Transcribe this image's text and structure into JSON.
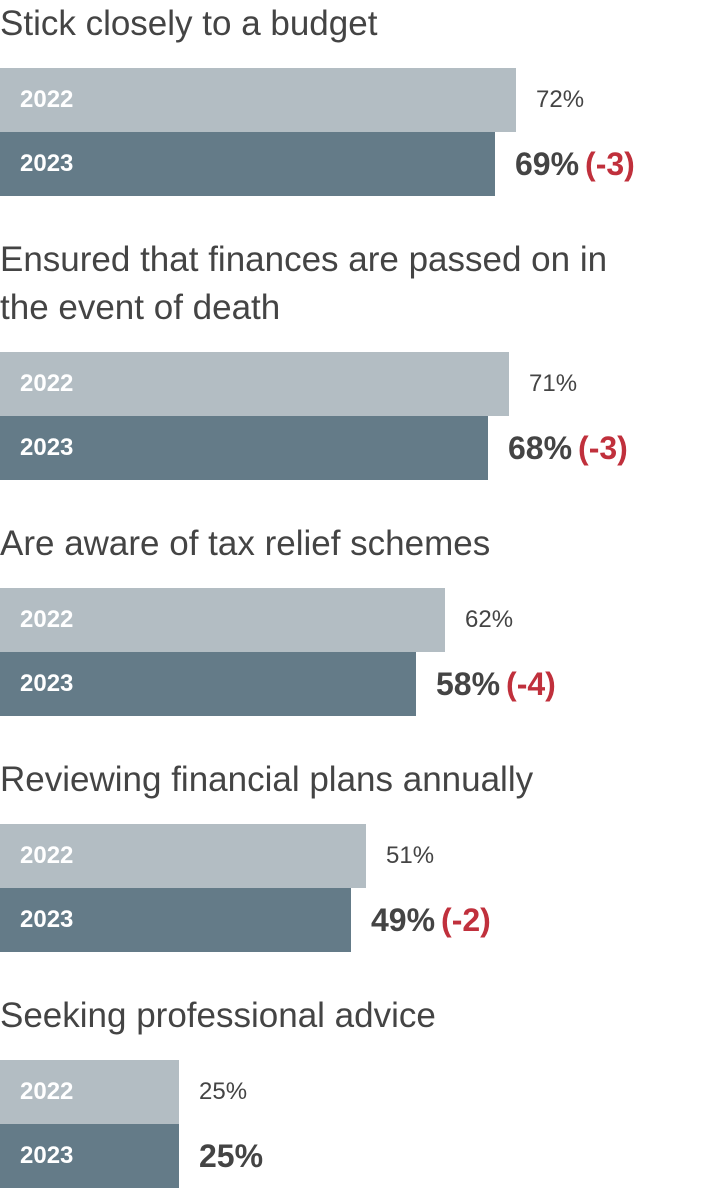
{
  "colors": {
    "bar_2022": "#b3bdc3",
    "bar_2023": "#647b88",
    "text": "#444444",
    "change": "#c0303c",
    "bar_label": "#ffffff"
  },
  "chart_data": {
    "type": "bar",
    "orientation": "horizontal",
    "unit": "%",
    "xlim": [
      0,
      100
    ],
    "series": [
      {
        "name": "2022",
        "color": "#b3bdc3"
      },
      {
        "name": "2023",
        "color": "#647b88"
      }
    ],
    "categories": [
      {
        "title": "Stick closely to a budget",
        "values": [
          72,
          69
        ],
        "value_labels": [
          "72%",
          "69%"
        ],
        "change": "(-3)"
      },
      {
        "title": "Ensured that finances are passed on in the event of death",
        "values": [
          71,
          68
        ],
        "value_labels": [
          "71%",
          "68%"
        ],
        "change": "(-3)"
      },
      {
        "title": "Are aware of tax relief schemes",
        "values": [
          62,
          58
        ],
        "value_labels": [
          "62%",
          "58%"
        ],
        "change": "(-4)"
      },
      {
        "title": "Reviewing financial plans annually",
        "values": [
          51,
          49
        ],
        "value_labels": [
          "51%",
          "49%"
        ],
        "change": "(-2)"
      },
      {
        "title": "Seeking professional advice",
        "values": [
          25,
          25
        ],
        "value_labels": [
          "25%",
          "25%"
        ],
        "change": ""
      }
    ]
  }
}
